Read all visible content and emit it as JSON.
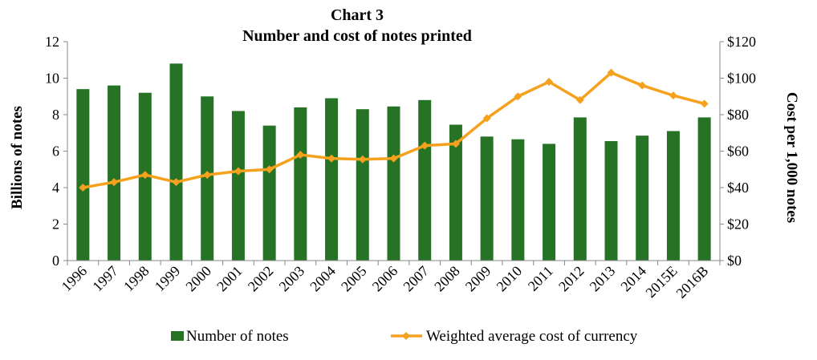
{
  "chart_data": {
    "type": "bar",
    "title": "Chart 3",
    "subtitle": "Number and cost of notes printed",
    "categories": [
      "1996",
      "1997",
      "1998",
      "1999",
      "2000",
      "2001",
      "2002",
      "2003",
      "2004",
      "2005",
      "2006",
      "2007",
      "2008",
      "2009",
      "2010",
      "2011",
      "2012",
      "2013",
      "2014",
      "2015E",
      "2016B"
    ],
    "series": [
      {
        "name": "Number of notes",
        "type": "bar",
        "axis": "left",
        "color": "#267326",
        "values": [
          9.4,
          9.6,
          9.2,
          10.8,
          9.0,
          8.2,
          7.4,
          8.4,
          8.9,
          8.3,
          8.45,
          8.8,
          7.45,
          6.8,
          6.65,
          6.4,
          7.85,
          6.55,
          6.85,
          7.1,
          7.85
        ]
      },
      {
        "name": "Weighted average cost of currency",
        "type": "line",
        "axis": "right",
        "color": "#F5A11D",
        "values": [
          40,
          43,
          47,
          43,
          47,
          49,
          50,
          58,
          56,
          55.5,
          56,
          63,
          64,
          78,
          90,
          98,
          88,
          103,
          96,
          90.5,
          86
        ]
      }
    ],
    "ylabel": "Billions  of notes",
    "ylim": [
      0,
      12
    ],
    "yticks": [
      "0",
      "2",
      "4",
      "6",
      "8",
      "10",
      "12"
    ],
    "y2label": "Cost per 1,000 notes",
    "y2lim": [
      0,
      120
    ],
    "y2ticks": [
      "$0",
      "$20",
      "$40",
      "$60",
      "$80",
      "$100",
      "$120"
    ],
    "grid": false,
    "legend_position": "bottom"
  }
}
